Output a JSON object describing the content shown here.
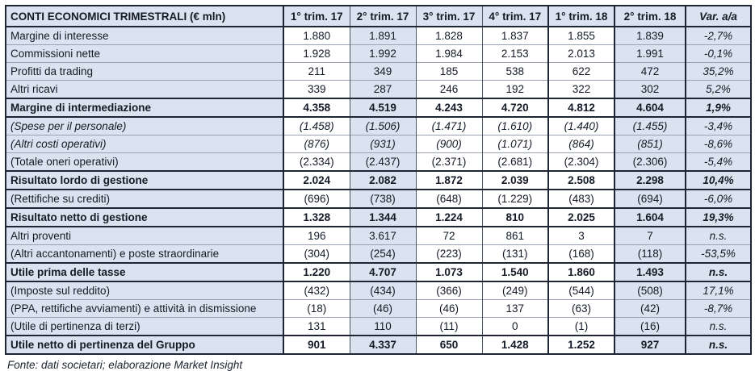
{
  "table": {
    "title": "CONTI ECONOMICI TRIMESTRALI (€ mln)",
    "columns": [
      "1° trim. 17",
      "2° trim. 17",
      "3° trim. 17",
      "4° trim. 17",
      "1° trim. 18",
      "2° trim. 18",
      "Var. a/a"
    ],
    "rows": [
      {
        "label": "Margine di interesse",
        "values": [
          "1.880",
          "1.891",
          "1.828",
          "1.837",
          "1.855",
          "1.839"
        ],
        "var": "-2,7%",
        "style": "normal"
      },
      {
        "label": "Commissioni nette",
        "values": [
          "1.928",
          "1.992",
          "1.984",
          "2.153",
          "2.013",
          "1.991"
        ],
        "var": "-0,1%",
        "style": "normal"
      },
      {
        "label": "Profitti da trading",
        "values": [
          "211",
          "349",
          "185",
          "538",
          "622",
          "472"
        ],
        "var": "35,2%",
        "style": "normal"
      },
      {
        "label": "Altri ricavi",
        "values": [
          "339",
          "287",
          "246",
          "192",
          "322",
          "302"
        ],
        "var": "5,2%",
        "style": "normal"
      },
      {
        "label": "Margine di intermediazione",
        "values": [
          "4.358",
          "4.519",
          "4.243",
          "4.720",
          "4.812",
          "4.604"
        ],
        "var": "1,9%",
        "style": "bold"
      },
      {
        "label": "(Spese per il personale)",
        "values": [
          "(1.458)",
          "(1.506)",
          "(1.471)",
          "(1.610)",
          "(1.440)",
          "(1.455)"
        ],
        "var": "-3,4%",
        "style": "italic"
      },
      {
        "label": "(Altri costi operativi)",
        "values": [
          "(876)",
          "(931)",
          "(900)",
          "(1.071)",
          "(864)",
          "(851)"
        ],
        "var": "-8,6%",
        "style": "italic"
      },
      {
        "label": "(Totale oneri operativi)",
        "values": [
          "(2.334)",
          "(2.437)",
          "(2.371)",
          "(2.681)",
          "(2.304)",
          "(2.306)"
        ],
        "var": "-5,4%",
        "style": "normal"
      },
      {
        "label": "Risultato lordo di gestione",
        "values": [
          "2.024",
          "2.082",
          "1.872",
          "2.039",
          "2.508",
          "2.298"
        ],
        "var": "10,4%",
        "style": "bold"
      },
      {
        "label": "(Rettifiche su crediti)",
        "values": [
          "(696)",
          "(738)",
          "(648)",
          "(1.229)",
          "(483)",
          "(694)"
        ],
        "var": "-6,0%",
        "style": "normal"
      },
      {
        "label": "Risultato netto di gestione",
        "values": [
          "1.328",
          "1.344",
          "1.224",
          "810",
          "2.025",
          "1.604"
        ],
        "var": "19,3%",
        "style": "bold"
      },
      {
        "label": "Altri proventi",
        "values": [
          "196",
          "3.617",
          "72",
          "861",
          "3",
          "7"
        ],
        "var": "n.s.",
        "style": "normal"
      },
      {
        "label": "(Altri accantonamenti) e poste straordinarie",
        "values": [
          "(304)",
          "(254)",
          "(223)",
          "(131)",
          "(168)",
          "(118)"
        ],
        "var": "-53,5%",
        "style": "normal"
      },
      {
        "label": "Utile prima delle tasse",
        "values": [
          "1.220",
          "4.707",
          "1.073",
          "1.540",
          "1.860",
          "1.493"
        ],
        "var": "n.s.",
        "style": "bold"
      },
      {
        "label": "(Imposte sul reddito)",
        "values": [
          "(432)",
          "(434)",
          "(366)",
          "(249)",
          "(544)",
          "(508)"
        ],
        "var": "17,1%",
        "style": "normal"
      },
      {
        "label": "(PPA, rettifiche avviamenti) e attività in dismissione",
        "values": [
          "(18)",
          "(46)",
          "(46)",
          "137",
          "(63)",
          "(42)"
        ],
        "var": "-8,7%",
        "style": "normal"
      },
      {
        "label": "(Utile di pertinenza di terzi)",
        "values": [
          "131",
          "110",
          "(11)",
          "0",
          "(1)",
          "(16)"
        ],
        "var": "n.s.",
        "style": "normal"
      },
      {
        "label": "Utile netto di pertinenza del Gruppo",
        "values": [
          "901",
          "4.337",
          "650",
          "1.428",
          "1.252",
          "927"
        ],
        "var": "n.s.",
        "style": "bold"
      }
    ]
  },
  "footer": {
    "source": "Fonte: dati societari; elaborazione Market Insight"
  },
  "colors": {
    "highlight_fill": "#dbe3f0",
    "strong_border": "#1e2533",
    "thin_border": "#98a2b1",
    "text": "#141a26"
  }
}
